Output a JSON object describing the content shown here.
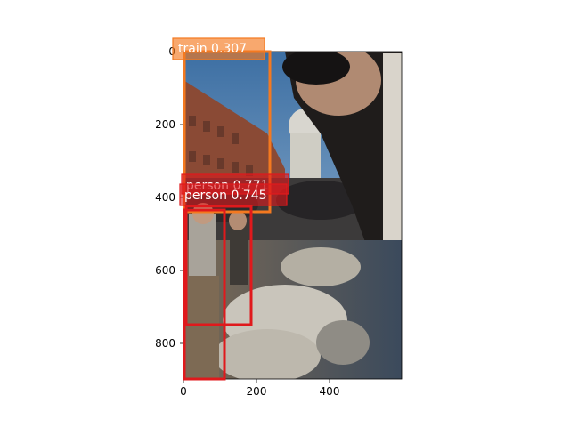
{
  "image": {
    "description_icon": "photo-crowd-with-sheep-icon"
  },
  "axes": {
    "x_ticks": [
      "0",
      "200",
      "400"
    ],
    "y_ticks": [
      "0",
      "200",
      "400",
      "600",
      "800"
    ]
  },
  "detections": [
    {
      "label": "train 0.307",
      "color": "#f47920"
    },
    {
      "label": "person 0.771",
      "color": "#e0191c"
    },
    {
      "label": "person 0.745",
      "color": "#e0191c"
    }
  ]
}
